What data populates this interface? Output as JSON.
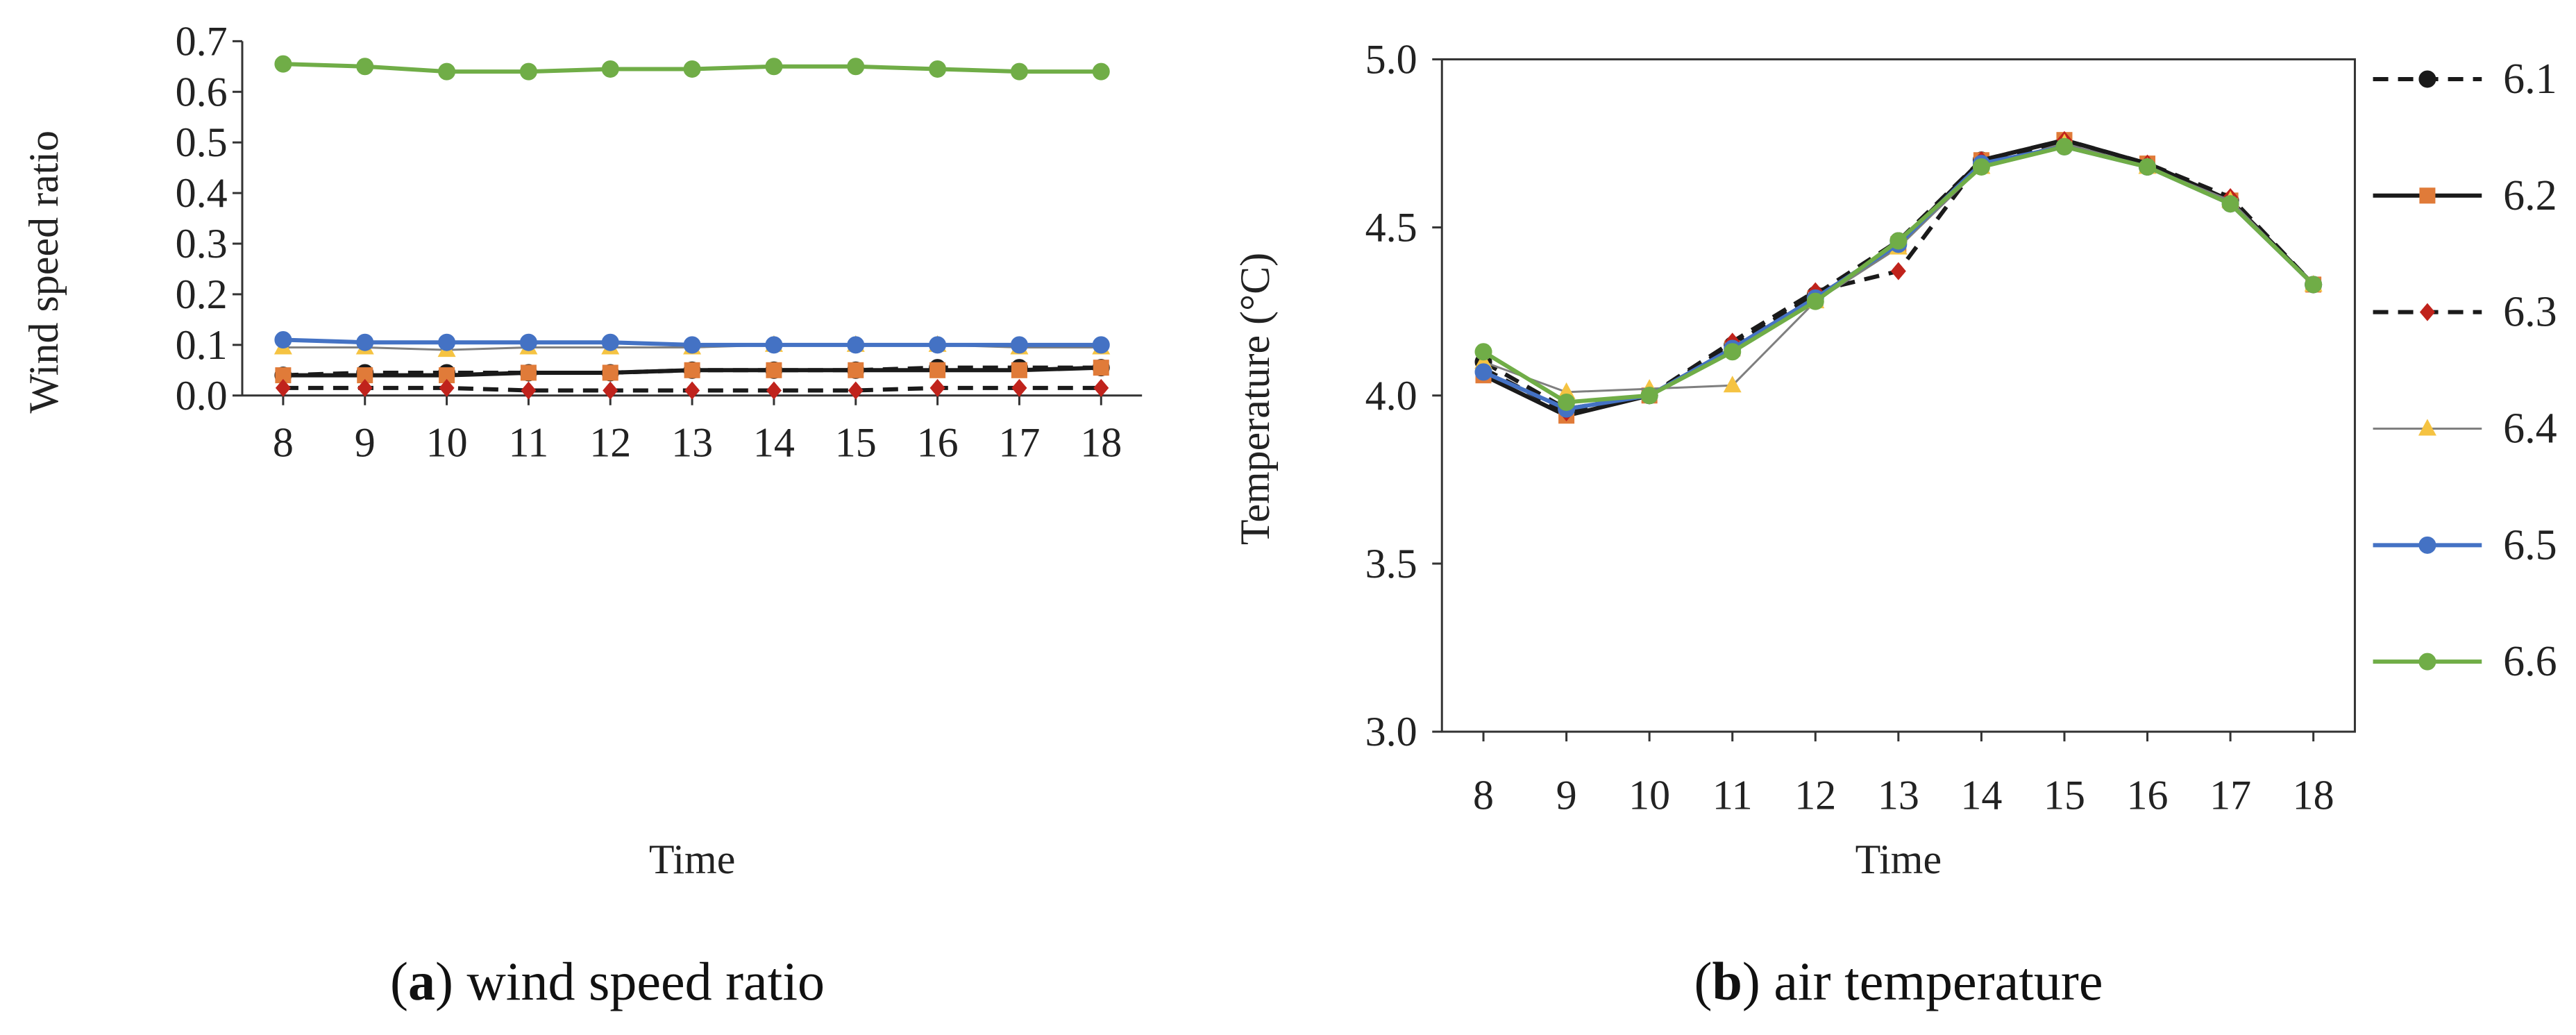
{
  "chart_data": [
    {
      "type": "line",
      "id": "a",
      "caption_letter": "a",
      "caption_text": "wind speed ratio",
      "xlabel": "Time",
      "ylabel": "Wind speed  ratio",
      "ylim": [
        0,
        0.7
      ],
      "yticks": [
        "0.0",
        "0.1",
        "0.2",
        "0.3",
        "0.4",
        "0.5",
        "0.6",
        "0.7"
      ],
      "x": [
        8,
        9,
        10,
        11,
        12,
        13,
        14,
        15,
        16,
        17,
        18
      ],
      "series": [
        {
          "name": "6.1",
          "color": "#1a1a1a",
          "dash": "dashed",
          "marker": "circle",
          "values": [
            0.04,
            0.045,
            0.045,
            0.045,
            0.045,
            0.05,
            0.05,
            0.05,
            0.055,
            0.055,
            0.055
          ]
        },
        {
          "name": "6.2",
          "color": "#1a1a1a",
          "marker_color": "#e07b39",
          "dash": "solid",
          "marker": "square",
          "values": [
            0.04,
            0.04,
            0.04,
            0.045,
            0.045,
            0.05,
            0.05,
            0.05,
            0.05,
            0.05,
            0.055
          ]
        },
        {
          "name": "6.3",
          "color": "#1a1a1a",
          "marker_color": "#c0231c",
          "dash": "dashed",
          "marker": "diamond",
          "values": [
            0.015,
            0.015,
            0.015,
            0.01,
            0.01,
            0.01,
            0.01,
            0.01,
            0.015,
            0.015,
            0.015
          ]
        },
        {
          "name": "6.4",
          "color": "#7f7f7f",
          "marker_color": "#f5c342",
          "dash": "solid",
          "marker": "triangle",
          "values": [
            0.095,
            0.095,
            0.09,
            0.095,
            0.095,
            0.095,
            0.1,
            0.1,
            0.1,
            0.095,
            0.095
          ]
        },
        {
          "name": "6.5",
          "color": "#4472c4",
          "dash": "solid",
          "marker": "circle",
          "values": [
            0.11,
            0.105,
            0.105,
            0.105,
            0.105,
            0.1,
            0.1,
            0.1,
            0.1,
            0.1,
            0.1
          ]
        },
        {
          "name": "6.6",
          "color": "#70ad47",
          "dash": "solid",
          "marker": "circle",
          "values": [
            0.655,
            0.65,
            0.64,
            0.64,
            0.645,
            0.645,
            0.65,
            0.65,
            0.645,
            0.64,
            0.64
          ]
        }
      ]
    },
    {
      "type": "line",
      "id": "b",
      "caption_letter": "b",
      "caption_text": "air temperature",
      "xlabel": "Time",
      "ylabel": "Temperature  (°C)",
      "ylim": [
        3.0,
        5.0
      ],
      "yticks": [
        "3.0",
        "3.5",
        "4.0",
        "4.5",
        "5.0"
      ],
      "x": [
        8,
        9,
        10,
        11,
        12,
        13,
        14,
        15,
        16,
        17,
        18
      ],
      "series": [
        {
          "name": "6.1",
          "color": "#1a1a1a",
          "dash": "dashed",
          "marker": "circle",
          "values": [
            4.1,
            3.96,
            4.0,
            4.15,
            4.3,
            4.46,
            4.7,
            4.75,
            4.68,
            4.58,
            4.33
          ]
        },
        {
          "name": "6.2",
          "color": "#1a1a1a",
          "marker_color": "#e07b39",
          "dash": "solid",
          "marker": "square",
          "values": [
            4.06,
            3.94,
            4.0,
            4.14,
            4.29,
            4.45,
            4.7,
            4.76,
            4.69,
            4.58,
            4.33
          ]
        },
        {
          "name": "6.3",
          "color": "#1a1a1a",
          "marker_color": "#c0231c",
          "dash": "dashed",
          "marker": "diamond",
          "values": [
            4.08,
            3.95,
            4.0,
            4.16,
            4.31,
            4.37,
            4.7,
            4.76,
            4.69,
            4.59,
            4.33
          ]
        },
        {
          "name": "6.4",
          "color": "#7f7f7f",
          "marker_color": "#f5c342",
          "dash": "solid",
          "marker": "triangle",
          "values": [
            4.1,
            4.01,
            4.02,
            4.03,
            4.28,
            4.44,
            4.68,
            4.75,
            4.68,
            4.58,
            4.33
          ]
        },
        {
          "name": "6.5",
          "color": "#4472c4",
          "dash": "solid",
          "marker": "circle",
          "values": [
            4.07,
            3.96,
            4.0,
            4.14,
            4.29,
            4.45,
            4.69,
            4.74,
            4.68,
            4.57,
            4.33
          ]
        },
        {
          "name": "6.6",
          "color": "#70ad47",
          "dash": "solid",
          "marker": "circle",
          "values": [
            4.13,
            3.98,
            4.0,
            4.13,
            4.28,
            4.46,
            4.68,
            4.74,
            4.68,
            4.57,
            4.33
          ]
        }
      ]
    }
  ]
}
